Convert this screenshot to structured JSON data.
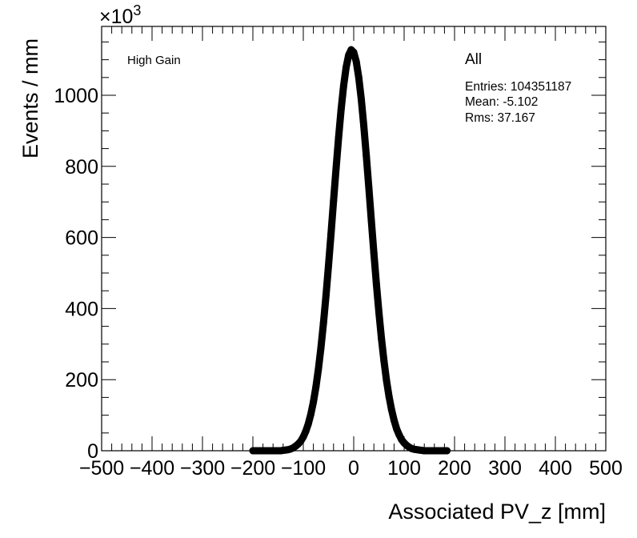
{
  "chart_data": {
    "type": "scatter",
    "title": "",
    "xlabel": "Associated PV_z [mm]",
    "ylabel": "Events / mm",
    "y_multiplier": "×10",
    "y_multiplier_exp": "3",
    "xlim": [
      -500,
      500
    ],
    "ylim": [
      0,
      1190
    ],
    "x_ticks": [
      -500,
      -400,
      -300,
      -200,
      -100,
      0,
      100,
      200,
      300,
      400,
      500
    ],
    "x_tick_labels": [
      "−500",
      "−400",
      "−300",
      "−200",
      "−100",
      "0",
      "100",
      "200",
      "300",
      "400",
      "500"
    ],
    "y_ticks": [
      0,
      200,
      400,
      600,
      800,
      1000
    ],
    "y_tick_labels": [
      "0",
      "200",
      "400",
      "600",
      "800",
      "1000"
    ],
    "grid": false,
    "legend_text": "High Gain",
    "stats": {
      "name": "All",
      "entries": "Entries: 104351187",
      "mean": "Mean: -5.102",
      "rms": "Rms: 37.167"
    },
    "series": [
      {
        "name": "All",
        "color": "#000000",
        "x": [
          -200,
          -195,
          -190,
          -185,
          -180,
          -175,
          -170,
          -165,
          -160,
          -155,
          -150,
          -145,
          -140,
          -135,
          -130,
          -125,
          -120,
          -115,
          -110,
          -105,
          -100,
          -95,
          -90,
          -85,
          -80,
          -75,
          -70,
          -65,
          -60,
          -55,
          -50,
          -45,
          -40,
          -35,
          -30,
          -25,
          -20,
          -15,
          -10,
          -5,
          0,
          5,
          10,
          15,
          20,
          25,
          30,
          35,
          40,
          45,
          50,
          55,
          60,
          65,
          70,
          75,
          80,
          85,
          90,
          95,
          100,
          105,
          110,
          115,
          120,
          125,
          130,
          135,
          140,
          145,
          150,
          155,
          160,
          165,
          170,
          175,
          180,
          185
        ],
        "y": [
          0,
          0,
          0,
          0,
          0,
          0,
          0,
          0,
          0,
          0,
          0,
          0,
          1,
          2,
          3,
          5,
          8,
          13,
          19,
          27,
          39,
          55,
          76,
          103,
          137,
          179,
          230,
          290,
          359,
          436,
          521,
          610,
          703,
          794,
          881,
          960,
          1027,
          1079,
          1113,
          1128,
          1121,
          1095,
          1050,
          989,
          914,
          830,
          740,
          647,
          556,
          469,
          389,
          316,
          253,
          198,
          153,
          116,
          86,
          62,
          45,
          31,
          22,
          15,
          10,
          6,
          4,
          3,
          2,
          1,
          0,
          0,
          0,
          0,
          0,
          0,
          0,
          0,
          0,
          0
        ]
      }
    ]
  }
}
